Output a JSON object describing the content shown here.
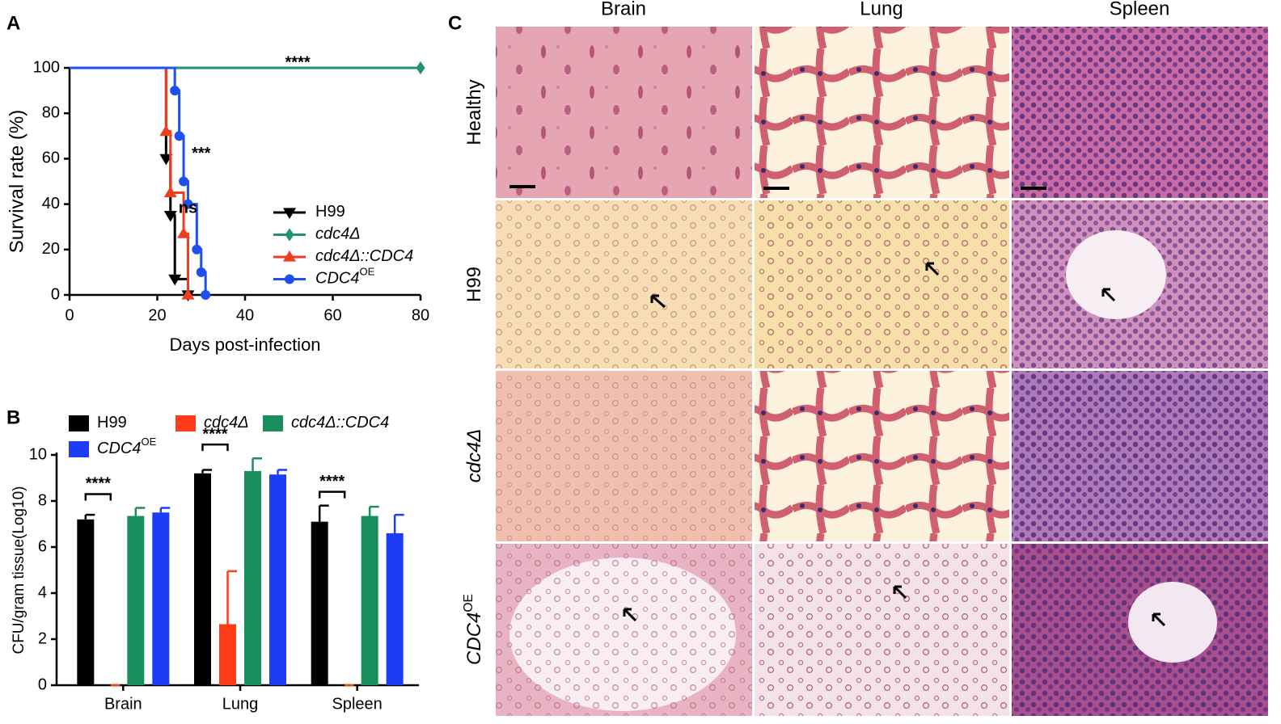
{
  "panels": {
    "a": "A",
    "b": "B",
    "c": "C"
  },
  "chart_data": [
    {
      "type": "survival",
      "xlabel": "Days post-infection",
      "ylabel": "Survival rate (%)",
      "xlim": [
        0,
        80
      ],
      "xticks": [
        0,
        20,
        40,
        60,
        80
      ],
      "ylim": [
        0,
        100
      ],
      "yticks": [
        0,
        20,
        40,
        60,
        80,
        100
      ],
      "series": [
        {
          "name": "H99",
          "color": "#000000",
          "marker": "triangle-down",
          "italic": false,
          "x": [
            0,
            22,
            23,
            24,
            27
          ],
          "y": [
            100,
            60,
            35,
            7,
            0
          ]
        },
        {
          "name": "cdc4Δ",
          "color": "#22946a",
          "marker": "diamond",
          "italic": true,
          "x": [
            0,
            80
          ],
          "y": [
            100,
            100
          ]
        },
        {
          "name": "cdc4Δ::CDC4",
          "color": "#f03c1f",
          "marker": "triangle",
          "italic": true,
          "x": [
            0,
            22,
            23,
            26,
            27
          ],
          "y": [
            100,
            72,
            45,
            27,
            0
          ]
        },
        {
          "name": "CDC4",
          "superscript": "OE",
          "color": "#1f4ff0",
          "marker": "circle",
          "italic": true,
          "x": [
            0,
            24,
            25,
            26,
            27,
            29,
            30,
            31
          ],
          "y": [
            100,
            90,
            70,
            50,
            40,
            20,
            10,
            0
          ]
        }
      ],
      "annotations": [
        {
          "text": "****",
          "color": "#22946a",
          "x": 52,
          "y": 102
        },
        {
          "text": "***",
          "color": "#1f4ff0",
          "x": 30,
          "y": 62
        },
        {
          "text": "ns",
          "color": "#f03c1f",
          "x": 27,
          "y": 38
        }
      ]
    },
    {
      "type": "bar",
      "ylabel": "CFU/gram tissue(Log10)",
      "categories": [
        "Brain",
        "Lung",
        "Spleen"
      ],
      "ylim": [
        0,
        10
      ],
      "yticks": [
        0,
        2,
        4,
        6,
        8,
        10
      ],
      "series": [
        {
          "name": "H99",
          "color": "#000000",
          "italic": false,
          "values": [
            7.2,
            9.2,
            7.1
          ],
          "errors": [
            0.2,
            0.15,
            0.7
          ]
        },
        {
          "name": "cdc4Δ",
          "color": "#ff3b1a",
          "italic": true,
          "values": [
            0,
            2.65,
            0
          ],
          "errors": [
            0,
            2.3,
            0
          ]
        },
        {
          "name": "cdc4Δ::CDC4",
          "color": "#1a8f5e",
          "italic": true,
          "values": [
            7.35,
            9.3,
            7.35
          ],
          "errors": [
            0.35,
            0.55,
            0.4
          ]
        },
        {
          "name": "CDC4",
          "superscript": "OE",
          "color": "#1d3cf5",
          "italic": true,
          "values": [
            7.5,
            9.15,
            6.6
          ],
          "errors": [
            0.2,
            0.2,
            0.8
          ]
        }
      ],
      "annotations": [
        {
          "text": "****",
          "color": "#ff3b1a",
          "category": 0
        },
        {
          "text": "****",
          "color": "#ff3b1a",
          "category": 1
        },
        {
          "text": "****",
          "color": "#ff3b1a",
          "category": 2
        }
      ]
    }
  ],
  "histology": {
    "columns": [
      "Brain",
      "Lung",
      "Spleen"
    ],
    "rows": [
      {
        "label": "Healthy",
        "italic": false
      },
      {
        "label": "H99",
        "italic": false
      },
      {
        "label": "cdc4Δ",
        "italic": true
      },
      {
        "label": "CDC4",
        "superscript": "OE",
        "italic": true
      }
    ]
  }
}
